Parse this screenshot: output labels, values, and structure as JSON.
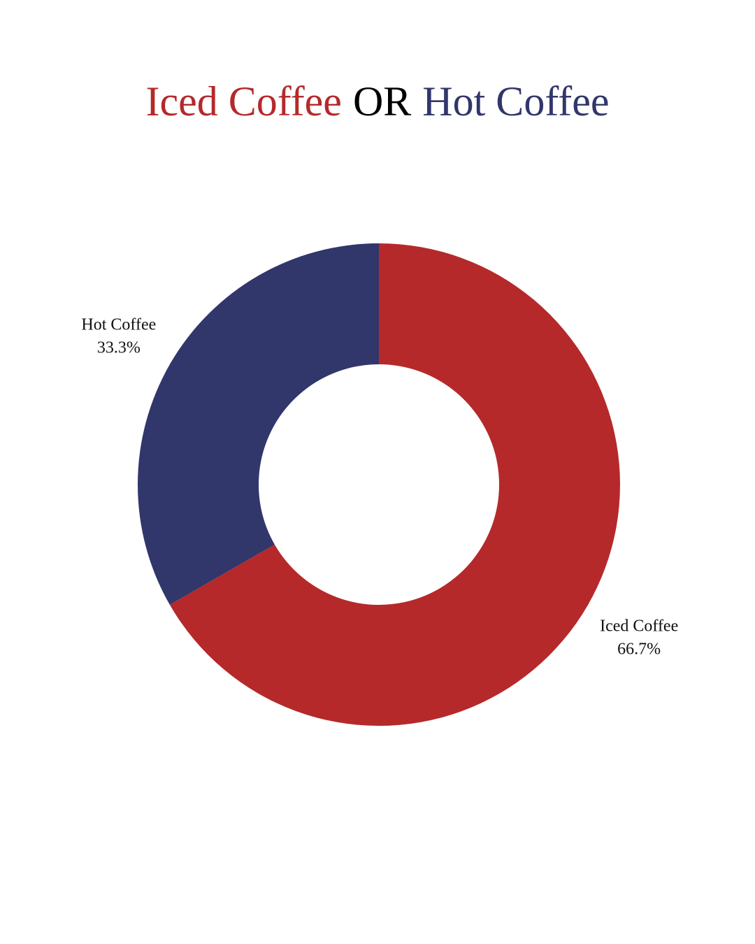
{
  "chart_data": {
    "type": "donut",
    "title_parts": [
      "Iced Coffee",
      "OR",
      "Hot Coffee"
    ],
    "title_colors": [
      "#b5292b",
      "#000000",
      "#31366b"
    ],
    "categories": [
      "Iced Coffee",
      "Hot Coffee"
    ],
    "values": [
      66.7,
      33.3
    ],
    "value_labels": [
      "66.7%",
      "33.3%"
    ],
    "colors": [
      "#b5292b",
      "#31366b"
    ]
  }
}
